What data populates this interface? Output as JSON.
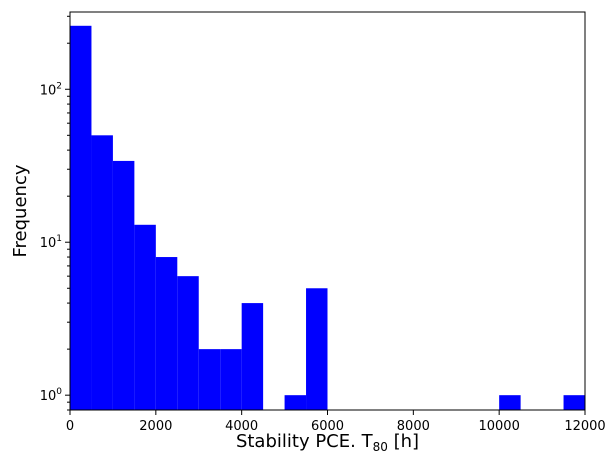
{
  "chart_data": {
    "type": "bar",
    "title": "",
    "xlabel": "Stability PCE. T",
    "xlabel_subscript": "80",
    "xlabel_suffix": " [h]",
    "ylabel": "Frequency",
    "y_scale": "log",
    "bar_color": "#0000ff",
    "xlim": [
      0,
      12000
    ],
    "ylim": [
      0.8,
      320
    ],
    "bin_width": 500,
    "x_ticks": [
      0,
      2000,
      4000,
      6000,
      8000,
      10000,
      12000
    ],
    "x_tick_labels": [
      "0",
      "2000",
      "4000",
      "6000",
      "8000",
      "10000",
      "12000"
    ],
    "y_ticks": [
      1,
      10,
      100
    ],
    "y_tick_labels": [
      {
        "base": "10",
        "exp": "0"
      },
      {
        "base": "10",
        "exp": "1"
      },
      {
        "base": "10",
        "exp": "2"
      }
    ],
    "bins": [
      {
        "start": 0,
        "end": 500,
        "count": 260
      },
      {
        "start": 500,
        "end": 1000,
        "count": 50
      },
      {
        "start": 1000,
        "end": 1500,
        "count": 34
      },
      {
        "start": 1500,
        "end": 2000,
        "count": 13
      },
      {
        "start": 2000,
        "end": 2500,
        "count": 8
      },
      {
        "start": 2500,
        "end": 3000,
        "count": 6
      },
      {
        "start": 3000,
        "end": 3500,
        "count": 2
      },
      {
        "start": 3500,
        "end": 4000,
        "count": 2
      },
      {
        "start": 4000,
        "end": 4500,
        "count": 4
      },
      {
        "start": 5000,
        "end": 5500,
        "count": 1
      },
      {
        "start": 5500,
        "end": 6000,
        "count": 5
      },
      {
        "start": 10000,
        "end": 10500,
        "count": 1
      },
      {
        "start": 11500,
        "end": 12000,
        "count": 1
      }
    ],
    "grid": false,
    "legend": "none"
  }
}
